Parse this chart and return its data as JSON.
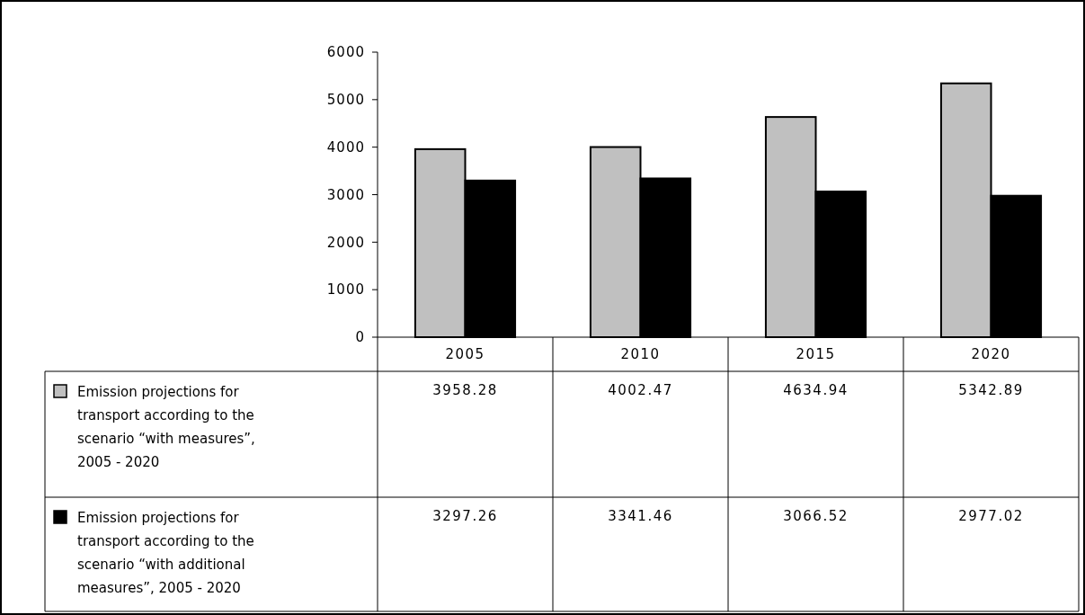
{
  "chart_data": {
    "type": "bar",
    "categories": [
      "2005",
      "2010",
      "2015",
      "2020"
    ],
    "series": [
      {
        "name": "Emission projections for transport according to the scenario “with measures”, 2005 - 2020",
        "color": "#c0c0c0",
        "values": [
          3958.28,
          4002.47,
          4634.94,
          5342.89
        ]
      },
      {
        "name": "Emission projections for transport according to the scenario “with additional measures”, 2005 - 2020",
        "color": "#000000",
        "values": [
          3297.26,
          3341.46,
          3066.52,
          2977.02
        ]
      }
    ],
    "ylim": [
      0,
      6000
    ],
    "yticks": [
      0,
      1000,
      2000,
      3000,
      4000,
      5000,
      6000
    ],
    "grid": false,
    "legend": "bottom",
    "data_labels": true
  }
}
